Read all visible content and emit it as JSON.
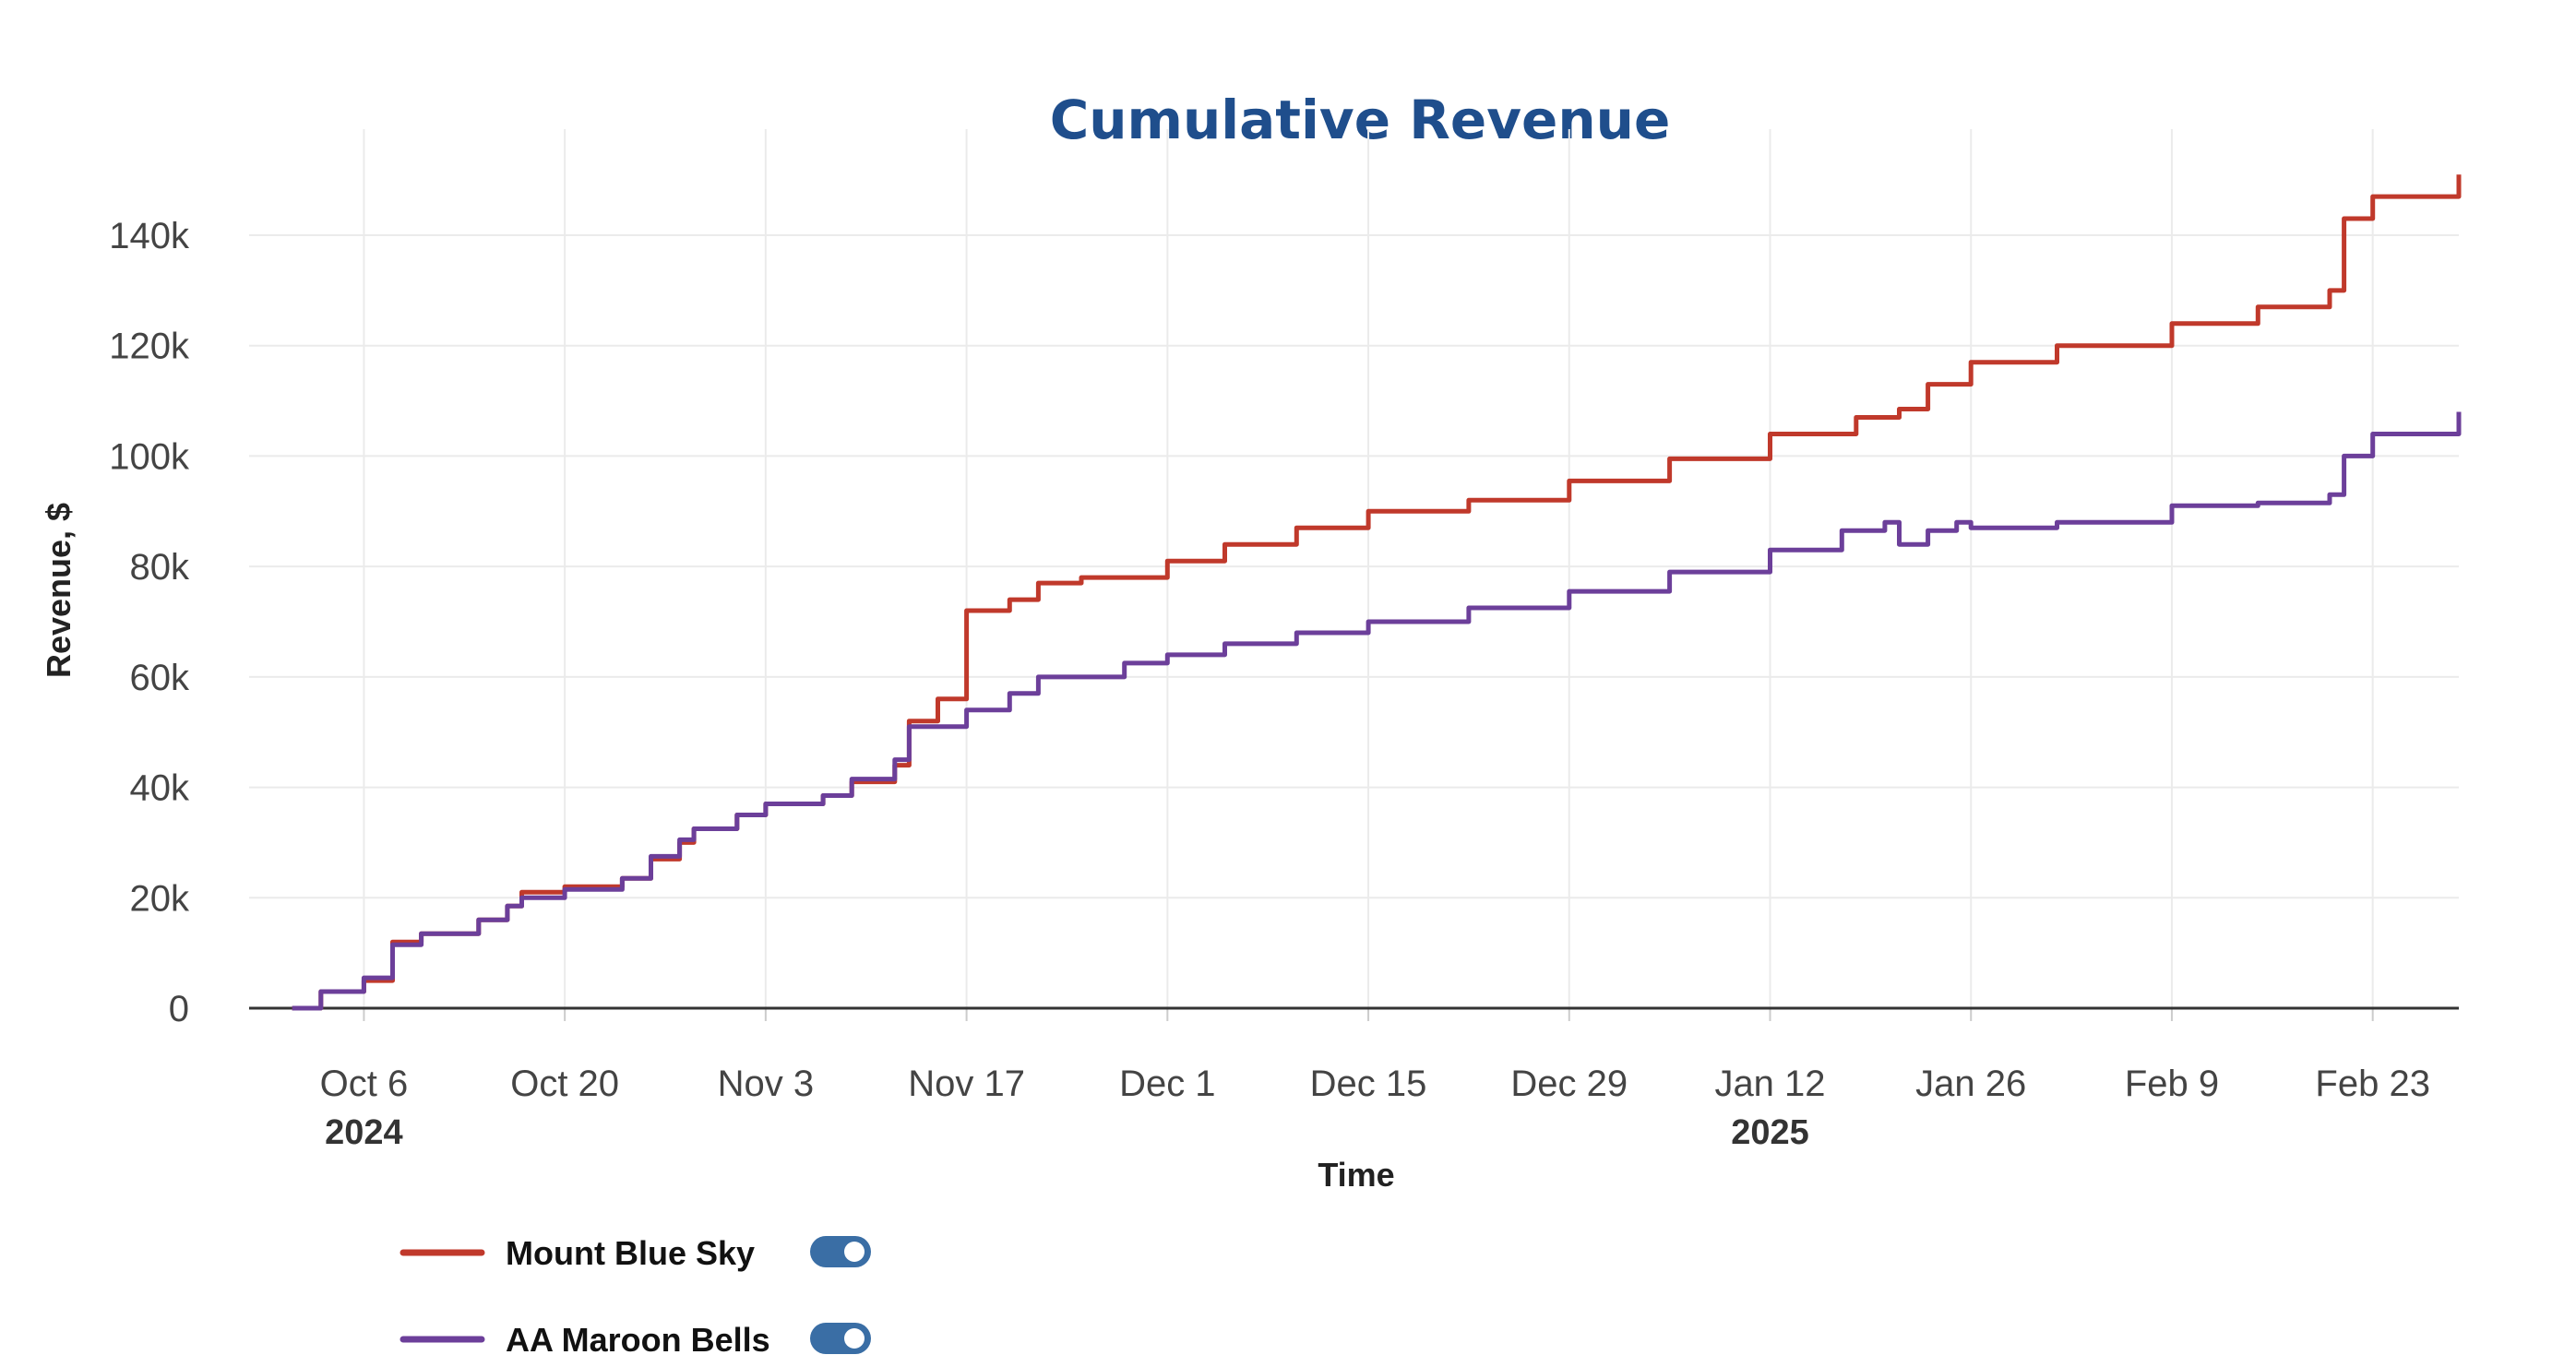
{
  "chart_data": {
    "type": "line",
    "title": "Cumulative Revenue",
    "xlabel": "Time",
    "ylabel": "Revenue, $",
    "x_axis_type": "date",
    "xlim": [
      "2024-09-28",
      "2025-03-01"
    ],
    "ylim": [
      0,
      150000
    ],
    "yticks": [
      0,
      20000,
      40000,
      60000,
      80000,
      100000,
      120000,
      140000
    ],
    "ytick_labels": [
      "0",
      "20k",
      "40k",
      "60k",
      "80k",
      "100k",
      "120k",
      "140k"
    ],
    "xticks": [
      "2024-10-06",
      "2024-10-20",
      "2024-11-03",
      "2024-11-17",
      "2024-12-01",
      "2024-12-15",
      "2024-12-29",
      "2025-01-12",
      "2025-01-26",
      "2025-02-09",
      "2025-02-23"
    ],
    "xtick_labels": [
      "Oct 6",
      "Oct 20",
      "Nov 3",
      "Nov 17",
      "Dec 1",
      "Dec 15",
      "Dec 29",
      "Jan 12",
      "Jan 26",
      "Feb 9",
      "Feb 23"
    ],
    "year_labels": [
      {
        "date": "2024-10-06",
        "label": "2024"
      },
      {
        "date": "2025-01-12",
        "label": "2025"
      }
    ],
    "grid": true,
    "legend_position": "bottom-left",
    "series": [
      {
        "name": "Mount Blue Sky",
        "color": "#c0392b",
        "toggle_on": true,
        "points": [
          [
            "2024-10-01",
            0
          ],
          [
            "2024-10-03",
            3000
          ],
          [
            "2024-10-06",
            5000
          ],
          [
            "2024-10-08",
            12000
          ],
          [
            "2024-10-10",
            13500
          ],
          [
            "2024-10-14",
            16000
          ],
          [
            "2024-10-16",
            18500
          ],
          [
            "2024-10-17",
            21000
          ],
          [
            "2024-10-20",
            22000
          ],
          [
            "2024-10-24",
            23500
          ],
          [
            "2024-10-26",
            27000
          ],
          [
            "2024-10-28",
            30000
          ],
          [
            "2024-10-29",
            32500
          ],
          [
            "2024-11-01",
            35000
          ],
          [
            "2024-11-03",
            37000
          ],
          [
            "2024-11-07",
            38500
          ],
          [
            "2024-11-09",
            41000
          ],
          [
            "2024-11-12",
            44000
          ],
          [
            "2024-11-13",
            52000
          ],
          [
            "2024-11-15",
            56000
          ],
          [
            "2024-11-17",
            58000
          ],
          [
            "2024-11-17",
            72000
          ],
          [
            "2024-11-20",
            74000
          ],
          [
            "2024-11-22",
            77000
          ],
          [
            "2024-11-25",
            78000
          ],
          [
            "2024-12-01",
            81000
          ],
          [
            "2024-12-05",
            84000
          ],
          [
            "2024-12-10",
            87000
          ],
          [
            "2024-12-15",
            90000
          ],
          [
            "2024-12-22",
            92000
          ],
          [
            "2024-12-29",
            95500
          ],
          [
            "2025-01-05",
            99500
          ],
          [
            "2025-01-12",
            104000
          ],
          [
            "2025-01-18",
            107000
          ],
          [
            "2025-01-21",
            108500
          ],
          [
            "2025-01-23",
            113000
          ],
          [
            "2025-01-26",
            117000
          ],
          [
            "2025-02-01",
            120000
          ],
          [
            "2025-02-09",
            124000
          ],
          [
            "2025-02-15",
            127000
          ],
          [
            "2025-02-20",
            130000
          ],
          [
            "2025-02-21",
            143000
          ],
          [
            "2025-02-23",
            147000
          ],
          [
            "2025-03-01",
            151000
          ]
        ]
      },
      {
        "name": "AA Maroon Bells",
        "color": "#6c3f9a",
        "toggle_on": true,
        "points": [
          [
            "2024-10-01",
            0
          ],
          [
            "2024-10-03",
            3000
          ],
          [
            "2024-10-06",
            5500
          ],
          [
            "2024-10-08",
            11500
          ],
          [
            "2024-10-10",
            13500
          ],
          [
            "2024-10-14",
            16000
          ],
          [
            "2024-10-16",
            18500
          ],
          [
            "2024-10-17",
            20000
          ],
          [
            "2024-10-20",
            21500
          ],
          [
            "2024-10-24",
            23500
          ],
          [
            "2024-10-26",
            27500
          ],
          [
            "2024-10-28",
            30500
          ],
          [
            "2024-10-29",
            32500
          ],
          [
            "2024-11-01",
            35000
          ],
          [
            "2024-11-03",
            37000
          ],
          [
            "2024-11-07",
            38500
          ],
          [
            "2024-11-09",
            41500
          ],
          [
            "2024-11-12",
            45000
          ],
          [
            "2024-11-13",
            51000
          ],
          [
            "2024-11-17",
            54000
          ],
          [
            "2024-11-20",
            57000
          ],
          [
            "2024-11-22",
            60000
          ],
          [
            "2024-11-28",
            62500
          ],
          [
            "2024-12-01",
            64000
          ],
          [
            "2024-12-05",
            66000
          ],
          [
            "2024-12-10",
            68000
          ],
          [
            "2024-12-15",
            70000
          ],
          [
            "2024-12-22",
            72500
          ],
          [
            "2024-12-29",
            75500
          ],
          [
            "2025-01-05",
            79000
          ],
          [
            "2025-01-12",
            83000
          ],
          [
            "2025-01-17",
            86500
          ],
          [
            "2025-01-20",
            88000
          ],
          [
            "2025-01-21",
            84000
          ],
          [
            "2025-01-23",
            86500
          ],
          [
            "2025-01-25",
            88000
          ],
          [
            "2025-01-26",
            87000
          ],
          [
            "2025-02-01",
            88000
          ],
          [
            "2025-02-09",
            91000
          ],
          [
            "2025-02-15",
            91500
          ],
          [
            "2025-02-20",
            93000
          ],
          [
            "2025-02-21",
            100000
          ],
          [
            "2025-02-23",
            104000
          ],
          [
            "2025-03-01",
            108000
          ]
        ]
      }
    ]
  },
  "legend": {
    "items": [
      {
        "label": "Mount Blue Sky",
        "color": "#c0392b",
        "toggle_color": "#3a6ea5"
      },
      {
        "label": "AA Maroon Bells",
        "color": "#6c3f9a",
        "toggle_color": "#3a6ea5"
      }
    ]
  }
}
